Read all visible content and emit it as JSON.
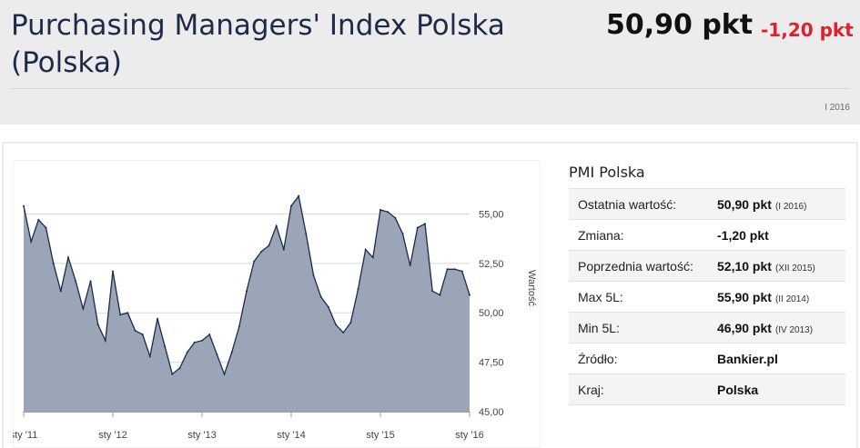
{
  "header": {
    "title": "Purchasing Managers' Index Polska (Polska)",
    "price": "50,90 pkt",
    "change": "-1,20 pkt",
    "date": "I 2016"
  },
  "info": {
    "title": "PMI Polska",
    "rows": [
      {
        "label": "Ostatnia wartość:",
        "value": "50,90 pkt",
        "note": "(I 2016)"
      },
      {
        "label": "Zmiana:",
        "value": "-1,20 pkt",
        "note": ""
      },
      {
        "label": "Poprzednia wartość:",
        "value": "52,10 pkt",
        "note": "(XII 2015)"
      },
      {
        "label": "Max 5L:",
        "value": "55,90 pkt",
        "note": "(II 2014)"
      },
      {
        "label": "Min 5L:",
        "value": "46,90 pkt",
        "note": "(IV 2013)"
      },
      {
        "label": "Źródło:",
        "value": "Bankier.pl",
        "note": ""
      },
      {
        "label": "Kraj:",
        "value": "Polska",
        "note": ""
      }
    ]
  },
  "colors": {
    "fill": "#9aa5b8",
    "line": "#1e2a4a",
    "change": "#e0202a"
  },
  "chart_data": {
    "type": "area",
    "ylabel": "Wartość",
    "ylim": [
      45,
      57.5
    ],
    "yticks": [
      45,
      47.5,
      50,
      52.5,
      55
    ],
    "ytick_labels": [
      "45,00",
      "47,50",
      "50,00",
      "52,50",
      "55,00"
    ],
    "x_tick_labels": [
      "sty '11",
      "sty '12",
      "sty '13",
      "sty '14",
      "sty '15",
      "sty '16"
    ],
    "grid": true,
    "series": [
      {
        "x": [
          "2011-01",
          "2011-02",
          "2011-03",
          "2011-04",
          "2011-05",
          "2011-06",
          "2011-07",
          "2011-08",
          "2011-09",
          "2011-10",
          "2011-11",
          "2011-12",
          "2012-01",
          "2012-02",
          "2012-03",
          "2012-04",
          "2012-05",
          "2012-06",
          "2012-07",
          "2012-08",
          "2012-09",
          "2012-10",
          "2012-11",
          "2012-12",
          "2013-01",
          "2013-02",
          "2013-03",
          "2013-04",
          "2013-05",
          "2013-06",
          "2013-07",
          "2013-08",
          "2013-09",
          "2013-10",
          "2013-11",
          "2013-12",
          "2014-01",
          "2014-02",
          "2014-03",
          "2014-04",
          "2014-05",
          "2014-06",
          "2014-07",
          "2014-08",
          "2014-09",
          "2014-10",
          "2014-11",
          "2014-12",
          "2015-01",
          "2015-02",
          "2015-03",
          "2015-04",
          "2015-05",
          "2015-06",
          "2015-07",
          "2015-08",
          "2015-09",
          "2015-10",
          "2015-11",
          "2015-12",
          "2016-01"
        ],
        "values": [
          55.4,
          53.6,
          54.7,
          54.3,
          52.5,
          51.1,
          52.8,
          51.6,
          50.2,
          51.6,
          49.4,
          48.6,
          52.1,
          49.9,
          50.0,
          49.1,
          48.9,
          47.8,
          49.7,
          48.3,
          46.9,
          47.2,
          48.0,
          48.5,
          48.6,
          48.9,
          47.9,
          46.9,
          48.0,
          49.3,
          51.1,
          52.6,
          53.1,
          53.4,
          54.4,
          53.2,
          55.4,
          55.9,
          54.0,
          51.9,
          50.8,
          50.3,
          49.4,
          49.0,
          49.5,
          51.2,
          53.2,
          52.8,
          55.2,
          55.1,
          54.8,
          54.0,
          52.4,
          54.3,
          54.5,
          51.1,
          50.9,
          52.2,
          52.2,
          52.1,
          50.9
        ]
      }
    ]
  }
}
